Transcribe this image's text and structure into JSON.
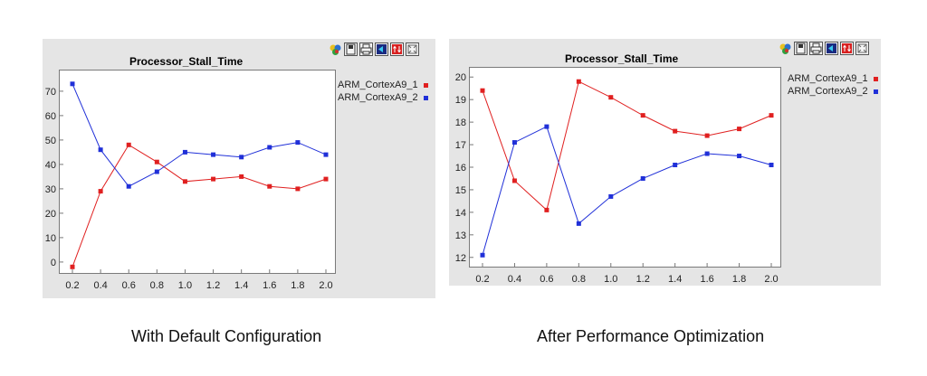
{
  "charts": [
    {
      "toolbar": [
        "palette-icon",
        "save-icon",
        "print-icon",
        "export-icon",
        "sort-icon",
        "fit-icon"
      ],
      "chart_data": {
        "type": "line",
        "title": "Processor_Stall_Time",
        "xlabel": "",
        "ylabel": "",
        "x": [
          0.2,
          0.4,
          0.6,
          0.8,
          1.0,
          1.2,
          1.4,
          1.6,
          1.8,
          2.0
        ],
        "x_ticks": [
          "0.2",
          "0.4",
          "0.6",
          "0.8",
          "1.0",
          "1.2",
          "1.4",
          "1.6",
          "1.8",
          "2.0"
        ],
        "y_ticks": [
          "0",
          "10",
          "20",
          "30",
          "40",
          "50",
          "60",
          "70"
        ],
        "ylim": [
          -3,
          77
        ],
        "legend_position": "right",
        "series": [
          {
            "name": "ARM_CortexA9_1",
            "color": "#e02020",
            "values": [
              -2,
              29,
              48,
              41,
              33,
              34,
              35,
              31,
              30,
              34
            ]
          },
          {
            "name": "ARM_CortexA9_2",
            "color": "#2030d8",
            "values": [
              73,
              46,
              31,
              37,
              45,
              44,
              43,
              47,
              49,
              44
            ]
          }
        ]
      },
      "caption": "With Default Configuration"
    },
    {
      "toolbar": [
        "palette-icon",
        "save-icon",
        "print-icon",
        "export-icon",
        "sort-icon",
        "fit-icon"
      ],
      "chart_data": {
        "type": "line",
        "title": "Processor_Stall_Time",
        "xlabel": "",
        "ylabel": "",
        "x": [
          0.2,
          0.4,
          0.6,
          0.8,
          1.0,
          1.2,
          1.4,
          1.6,
          1.8,
          2.0
        ],
        "x_ticks": [
          "0.2",
          "0.4",
          "0.6",
          "0.8",
          "1.0",
          "1.2",
          "1.4",
          "1.6",
          "1.8",
          "2.0"
        ],
        "y_ticks": [
          "12",
          "13",
          "14",
          "15",
          "16",
          "17",
          "18",
          "19",
          "20"
        ],
        "ylim": [
          11.75,
          20.25
        ],
        "legend_position": "right",
        "series": [
          {
            "name": "ARM_CortexA9_1",
            "color": "#e02020",
            "values": [
              19.4,
              15.4,
              14.1,
              19.8,
              19.1,
              18.3,
              17.6,
              17.4,
              17.7,
              18.3
            ]
          },
          {
            "name": "ARM_CortexA9_2",
            "color": "#2030d8",
            "values": [
              12.1,
              17.1,
              17.8,
              13.5,
              14.7,
              15.5,
              16.1,
              16.6,
              16.5,
              16.1
            ]
          }
        ]
      },
      "caption": "After Performance Optimization"
    }
  ]
}
